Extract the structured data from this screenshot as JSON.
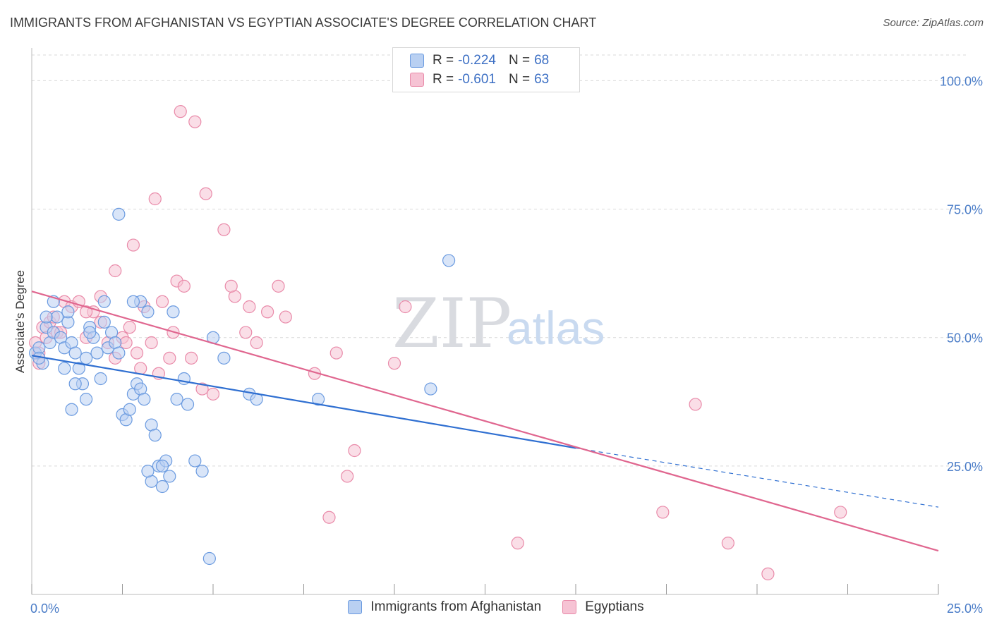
{
  "header": {
    "title": "IMMIGRANTS FROM AFGHANISTAN VS EGYPTIAN ASSOCIATE'S DEGREE CORRELATION CHART",
    "source": "Source: ZipAtlas.com"
  },
  "watermark": {
    "zip": "ZIP",
    "atlas": "atlas"
  },
  "legend": {
    "rows": [
      {
        "r_label": "R =",
        "r_value": "-0.224",
        "n_label": "N =",
        "n_value": "68"
      },
      {
        "r_label": "R =",
        "r_value": "-0.601",
        "n_label": "N =",
        "n_value": "63"
      }
    ],
    "bottom": [
      "Immigrants from Afghanistan",
      "Egyptians"
    ]
  },
  "colors": {
    "blue_fill": "#b9d0f2",
    "blue_stroke": "#6b9be0",
    "blue_line": "#2f6fd1",
    "pink_fill": "#f6c3d4",
    "pink_stroke": "#e98aa9",
    "pink_line": "#e0668f",
    "grid": "#d9d9d9",
    "tick_text": "#4a7cc7"
  },
  "chart_data": {
    "type": "scatter",
    "title": "IMMIGRANTS FROM AFGHANISTAN VS EGYPTIAN ASSOCIATE'S DEGREE CORRELATION CHART",
    "xlabel": "",
    "ylabel": "Associate's Degree",
    "xlim": [
      0,
      25
    ],
    "ylim": [
      0,
      105
    ],
    "x_tick_labels": [
      "0.0%",
      "25.0%"
    ],
    "y_ticks": [
      25,
      50,
      75,
      100
    ],
    "y_tick_labels": [
      "25.0%",
      "50.0%",
      "75.0%",
      "100.0%"
    ],
    "grid": true,
    "legend_position": "top-center",
    "series": [
      {
        "name": "Immigrants from Afghanistan",
        "trend": {
          "x0": 0,
          "y0": 46.5,
          "x1": 15,
          "y1": 28.5,
          "dashed_to_x": 25,
          "dashed_to_y": 17
        },
        "points": [
          [
            0.1,
            47
          ],
          [
            0.2,
            48
          ],
          [
            0.3,
            45
          ],
          [
            0.4,
            52
          ],
          [
            0.5,
            49
          ],
          [
            0.6,
            51
          ],
          [
            0.7,
            54
          ],
          [
            0.8,
            50
          ],
          [
            0.9,
            48
          ],
          [
            1.0,
            53
          ],
          [
            1.1,
            49
          ],
          [
            1.2,
            47
          ],
          [
            1.3,
            44
          ],
          [
            1.4,
            41
          ],
          [
            1.5,
            46
          ],
          [
            1.6,
            52
          ],
          [
            1.7,
            50
          ],
          [
            1.8,
            47
          ],
          [
            1.9,
            42
          ],
          [
            2.0,
            53
          ],
          [
            2.1,
            48
          ],
          [
            2.2,
            51
          ],
          [
            2.3,
            49
          ],
          [
            2.4,
            47
          ],
          [
            2.5,
            35
          ],
          [
            2.6,
            34
          ],
          [
            2.7,
            36
          ],
          [
            2.8,
            39
          ],
          [
            2.9,
            41
          ],
          [
            3.0,
            40
          ],
          [
            3.1,
            38
          ],
          [
            3.2,
            55
          ],
          [
            3.3,
            33
          ],
          [
            3.4,
            31
          ],
          [
            3.5,
            25
          ],
          [
            3.6,
            21
          ],
          [
            3.7,
            26
          ],
          [
            3.8,
            23
          ],
          [
            0.4,
            54
          ],
          [
            0.6,
            57
          ],
          [
            1.0,
            55
          ],
          [
            1.2,
            41
          ],
          [
            1.6,
            51
          ],
          [
            2.4,
            74
          ],
          [
            3.0,
            57
          ],
          [
            3.9,
            55
          ],
          [
            4.2,
            42
          ],
          [
            4.5,
            26
          ],
          [
            4.7,
            24
          ],
          [
            5.0,
            50
          ],
          [
            5.3,
            46
          ],
          [
            6.0,
            39
          ],
          [
            6.2,
            38
          ],
          [
            7.9,
            38
          ],
          [
            11.0,
            40
          ],
          [
            11.5,
            65
          ],
          [
            4.3,
            37
          ],
          [
            3.3,
            22
          ],
          [
            3.6,
            25
          ],
          [
            2.0,
            57
          ],
          [
            1.5,
            38
          ],
          [
            1.1,
            36
          ],
          [
            0.2,
            46
          ],
          [
            0.9,
            44
          ],
          [
            2.8,
            57
          ],
          [
            3.2,
            24
          ],
          [
            4.0,
            38
          ],
          [
            4.9,
            7
          ]
        ]
      },
      {
        "name": "Egyptians",
        "trend": {
          "x0": 0,
          "y0": 59,
          "x1": 25,
          "y1": 8.5
        },
        "points": [
          [
            0.1,
            49
          ],
          [
            0.2,
            47
          ],
          [
            0.3,
            52
          ],
          [
            0.5,
            53
          ],
          [
            0.7,
            51
          ],
          [
            0.9,
            57
          ],
          [
            1.1,
            56
          ],
          [
            1.3,
            57
          ],
          [
            1.5,
            50
          ],
          [
            1.7,
            55
          ],
          [
            1.9,
            53
          ],
          [
            2.1,
            49
          ],
          [
            2.3,
            46
          ],
          [
            2.5,
            50
          ],
          [
            2.7,
            52
          ],
          [
            2.9,
            47
          ],
          [
            3.1,
            56
          ],
          [
            3.3,
            49
          ],
          [
            3.5,
            43
          ],
          [
            3.8,
            46
          ],
          [
            4.0,
            61
          ],
          [
            4.2,
            60
          ],
          [
            4.4,
            46
          ],
          [
            4.7,
            40
          ],
          [
            5.0,
            39
          ],
          [
            5.3,
            71
          ],
          [
            5.6,
            58
          ],
          [
            5.9,
            51
          ],
          [
            6.2,
            49
          ],
          [
            6.5,
            55
          ],
          [
            7.0,
            54
          ],
          [
            7.8,
            43
          ],
          [
            8.4,
            47
          ],
          [
            8.9,
            28
          ],
          [
            8.7,
            23
          ],
          [
            8.2,
            15
          ],
          [
            10.0,
            45
          ],
          [
            10.3,
            56
          ],
          [
            13.4,
            10
          ],
          [
            17.4,
            16
          ],
          [
            18.3,
            37
          ],
          [
            19.2,
            10
          ],
          [
            20.3,
            4
          ],
          [
            22.3,
            16
          ],
          [
            4.1,
            94
          ],
          [
            4.5,
            92
          ],
          [
            2.8,
            68
          ],
          [
            3.4,
            77
          ],
          [
            4.8,
            78
          ],
          [
            2.3,
            63
          ],
          [
            1.5,
            55
          ],
          [
            0.8,
            51
          ],
          [
            0.4,
            50
          ],
          [
            0.6,
            54
          ],
          [
            1.9,
            58
          ],
          [
            2.6,
            49
          ],
          [
            3.0,
            44
          ],
          [
            3.6,
            57
          ],
          [
            3.9,
            51
          ],
          [
            5.5,
            60
          ],
          [
            6.8,
            60
          ],
          [
            6.0,
            56
          ],
          [
            0.2,
            45
          ]
        ]
      }
    ]
  }
}
